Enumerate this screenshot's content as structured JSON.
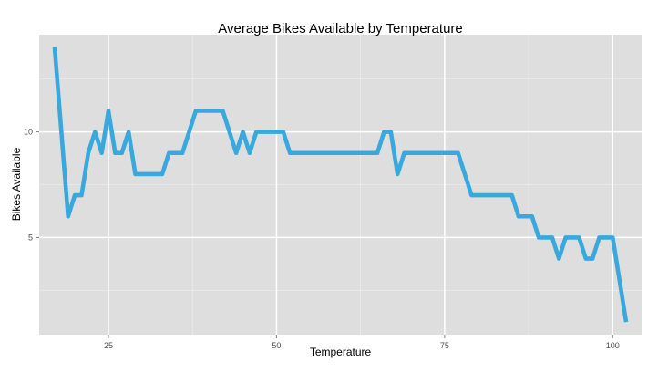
{
  "chart_data": {
    "type": "line",
    "title": "Average Bikes Available by Temperature",
    "xlabel": "Temperature",
    "ylabel": "Bikes Available",
    "xlim": [
      14.7,
      104.3
    ],
    "ylim": [
      0.4,
      14.6
    ],
    "x_ticks": [
      25,
      50,
      75,
      100
    ],
    "y_ticks": [
      5,
      10
    ],
    "grid": true,
    "legend": "none",
    "colors": {
      "line": "#39a9dd",
      "panel": "#dedede",
      "grid_major": "#ffffff",
      "grid_minor": "#ebebeb",
      "tick_label": "#4d4d4d",
      "text": "#000000"
    },
    "series": [
      {
        "x": [
          17,
          19,
          20,
          21,
          22,
          23,
          24,
          25,
          26,
          27,
          28,
          29,
          30,
          31,
          32,
          33,
          34,
          35,
          36,
          38,
          39,
          40,
          41,
          42,
          44,
          45,
          46,
          47,
          48,
          49,
          50,
          51,
          52,
          54,
          56,
          58,
          60,
          62,
          64,
          65,
          66,
          67,
          68,
          69,
          70,
          72,
          74,
          76,
          77,
          79,
          81,
          83,
          84,
          85,
          86,
          87,
          88,
          89,
          90,
          91,
          92,
          93,
          94,
          95,
          96,
          97,
          98,
          99,
          100,
          102
        ],
        "values": [
          14,
          6,
          7,
          7,
          9,
          10,
          9,
          11,
          9,
          9,
          10,
          8,
          8,
          8,
          8,
          8,
          9,
          9,
          9,
          11,
          11,
          11,
          11,
          11,
          9,
          10,
          9,
          10,
          10,
          10,
          10,
          10,
          9,
          9,
          9,
          9,
          9,
          9,
          9,
          9,
          10,
          10,
          8,
          9,
          9,
          9,
          9,
          9,
          9,
          7,
          7,
          7,
          7,
          7,
          6,
          6,
          6,
          5,
          5,
          5,
          4,
          5,
          5,
          5,
          4,
          4,
          5,
          5,
          5,
          1
        ]
      }
    ]
  }
}
